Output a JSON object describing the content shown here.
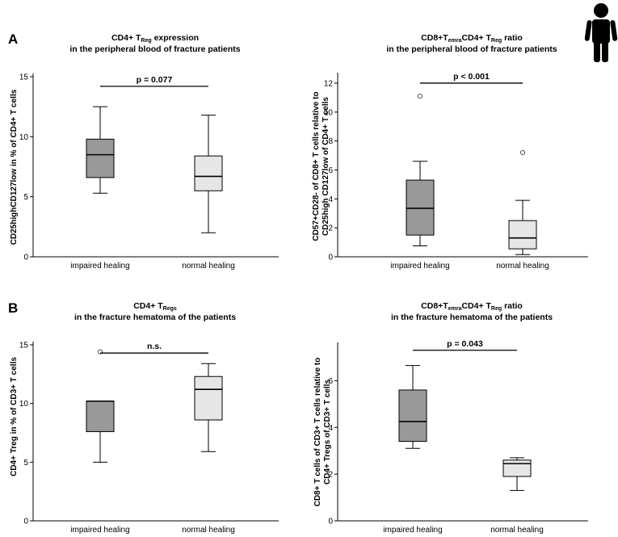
{
  "panel_labels": [
    "A",
    "B"
  ],
  "human_icon": "human-silhouette-icon",
  "colors": {
    "impaired": "#999999",
    "normal": "#e6e6e6",
    "stroke": "#000000"
  },
  "chart_data": [
    {
      "type": "box",
      "title_parts": [
        {
          "t": "CD4+ T",
          "sub": false
        },
        {
          "t": "Reg",
          "sub": true
        },
        {
          "t": " expression",
          "sub": false
        }
      ],
      "title_line2": "in the peripheral blood of fracture patients",
      "ylabel": "CD25highCD127low in % of CD4+ T cells",
      "ylim": [
        0,
        15
      ],
      "yticks": [
        0,
        5,
        10,
        15
      ],
      "categories": [
        "impaired healing",
        "normal healing"
      ],
      "boxes": [
        {
          "name": "impaired healing",
          "whisker_low": 5.3,
          "q1": 6.6,
          "median": 8.5,
          "q3": 9.8,
          "whisker_high": 12.5,
          "outliers": []
        },
        {
          "name": "normal healing",
          "whisker_low": 2.0,
          "q1": 5.5,
          "median": 6.7,
          "q3": 8.4,
          "whisker_high": 11.8,
          "outliers": []
        }
      ],
      "significance": "p = 0.077",
      "significance_y": 14.2
    },
    {
      "type": "box",
      "title_parts": [
        {
          "t": "CD8+T",
          "sub": false
        },
        {
          "t": "emra",
          "sub": true
        },
        {
          "t": "CD4+ T",
          "sub": false
        },
        {
          "t": "Reg",
          "sub": true
        },
        {
          "t": " ratio",
          "sub": false
        }
      ],
      "title_line2": "in the peripheral blood of fracture patients",
      "ylabel_lines": [
        "CD57+CD28- of CD8+ T cells relative to",
        "CD25high CD127low of CD4+ T cells"
      ],
      "ylim": [
        0,
        12.5
      ],
      "yticks": [
        0,
        2,
        4,
        6,
        8,
        10,
        12
      ],
      "categories": [
        "impaired healing",
        "normal healing"
      ],
      "boxes": [
        {
          "name": "impaired healing",
          "whisker_low": 0.75,
          "q1": 1.5,
          "median": 3.35,
          "q3": 5.3,
          "whisker_high": 6.6,
          "outliers": [
            11.1
          ]
        },
        {
          "name": "normal healing",
          "whisker_low": 0.15,
          "q1": 0.55,
          "median": 1.3,
          "q3": 2.5,
          "whisker_high": 3.9,
          "outliers": [
            7.2
          ]
        }
      ],
      "significance": "p < 0.001",
      "significance_y": 12.0
    },
    {
      "type": "box",
      "title_parts": [
        {
          "t": "CD4+ T",
          "sub": false
        },
        {
          "t": "Regs",
          "sub": true
        }
      ],
      "title_line2": "in the fracture hematoma of the patients",
      "ylabel": "CD4+ Treg in % of CD3+ T cells",
      "ylim": [
        0,
        15
      ],
      "yticks": [
        0,
        5,
        10,
        15
      ],
      "categories": [
        "impaired healing",
        "normal healing"
      ],
      "boxes": [
        {
          "name": "impaired healing",
          "whisker_low": 5.0,
          "q1": 7.6,
          "median": 10.2,
          "q3": 10.2,
          "whisker_high": 10.2,
          "outliers": [
            14.4
          ]
        },
        {
          "name": "normal healing",
          "whisker_low": 5.9,
          "q1": 8.6,
          "median": 11.2,
          "q3": 12.3,
          "whisker_high": 13.4,
          "outliers": []
        }
      ],
      "significance": "n.s.",
      "significance_y": 14.3
    },
    {
      "type": "box",
      "title_parts": [
        {
          "t": "CD8+T",
          "sub": false
        },
        {
          "t": "emra",
          "sub": true
        },
        {
          "t": "CD4+ T",
          "sub": false
        },
        {
          "t": "Reg",
          "sub": true
        },
        {
          "t": " ratio",
          "sub": false
        }
      ],
      "title_line2": "in the fracture hematoma of the patients",
      "ylabel_lines": [
        "CD8+ T cells of CD3+ T cells relative to",
        "CD4+ Tregs of CD3+ T cells"
      ],
      "ylim": [
        0,
        7.5
      ],
      "yticks": [
        0,
        2,
        4,
        6
      ],
      "categories": [
        "impaired healing",
        "normal healing"
      ],
      "boxes": [
        {
          "name": "impaired healing",
          "whisker_low": 3.1,
          "q1": 3.4,
          "median": 4.25,
          "q3": 5.6,
          "whisker_high": 6.65,
          "outliers": []
        },
        {
          "name": "normal healing",
          "whisker_low": 1.3,
          "q1": 1.9,
          "median": 2.45,
          "q3": 2.6,
          "whisker_high": 2.7,
          "outliers": []
        }
      ],
      "significance": "p = 0.043",
      "significance_y": 7.3
    }
  ]
}
